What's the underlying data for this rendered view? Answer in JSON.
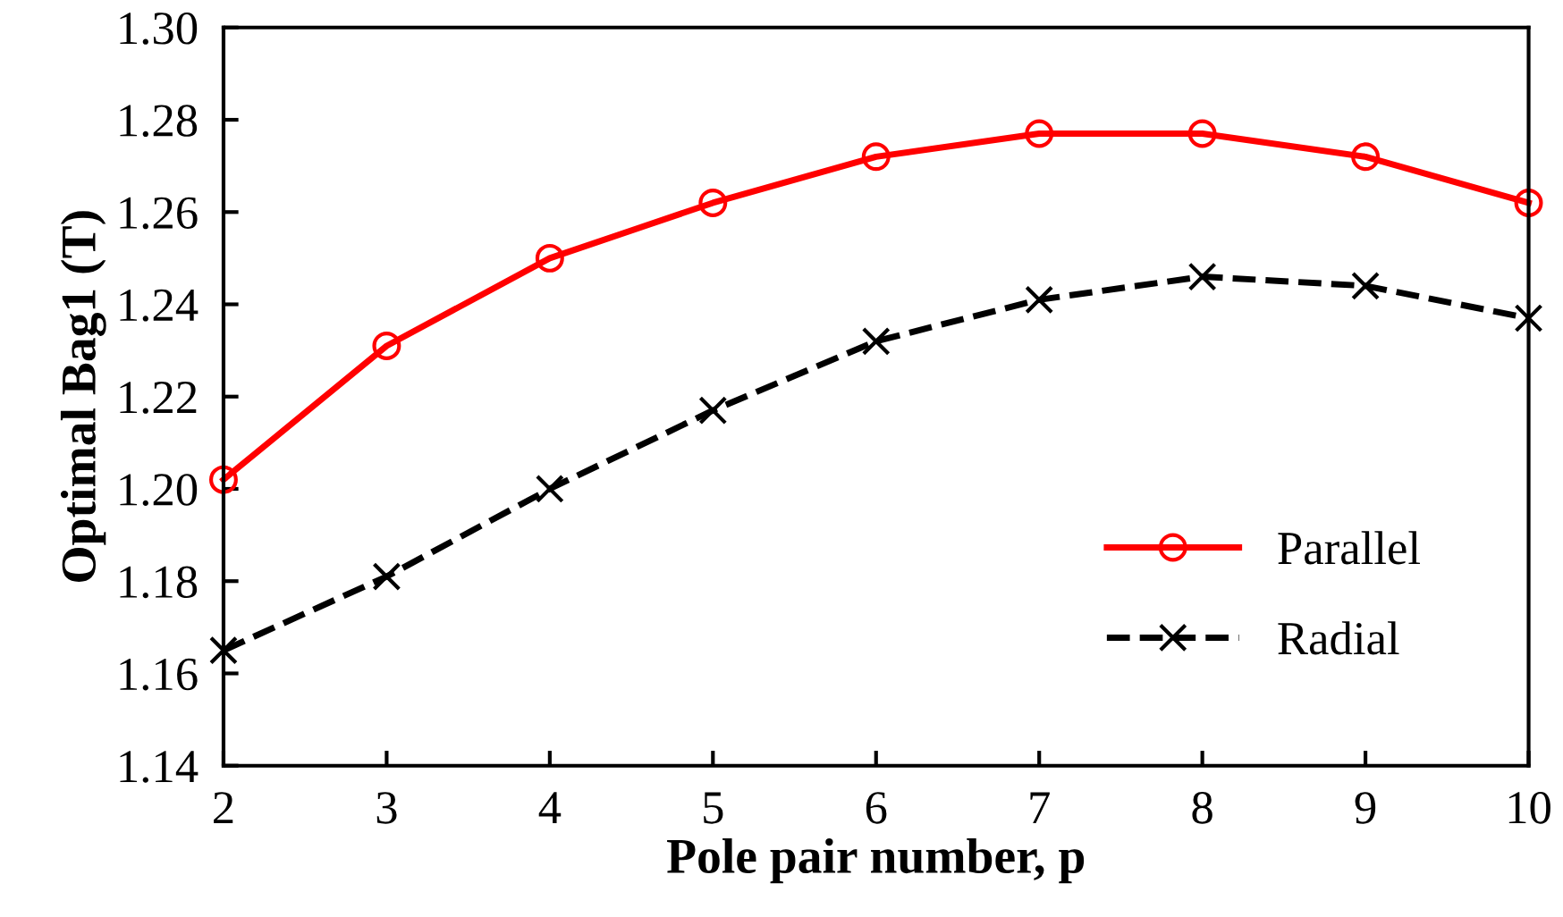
{
  "chart_data": {
    "type": "line",
    "xlabel": "Pole pair number, p",
    "ylabel": "Optimal Bag1 (T)",
    "x": [
      2,
      3,
      4,
      5,
      6,
      7,
      8,
      9,
      10
    ],
    "series": [
      {
        "name": "Parallel",
        "color": "#ff0000",
        "marker": "circle",
        "line_style": "solid",
        "values": [
          1.202,
          1.231,
          1.25,
          1.262,
          1.272,
          1.277,
          1.277,
          1.272,
          1.262
        ]
      },
      {
        "name": "Radial",
        "color": "#000000",
        "marker": "cross",
        "line_style": "dashed",
        "values": [
          1.165,
          1.181,
          1.2,
          1.217,
          1.232,
          1.241,
          1.246,
          1.244,
          1.237
        ]
      }
    ],
    "xlim": [
      2,
      10
    ],
    "xticks": [
      2,
      3,
      4,
      5,
      6,
      7,
      8,
      9,
      10
    ],
    "ylim": [
      1.14,
      1.3
    ],
    "yticks": [
      {
        "value": 1.14,
        "label": "1.14"
      },
      {
        "value": 1.16,
        "label": "1.16"
      },
      {
        "value": 1.18,
        "label": "1.18"
      },
      {
        "value": 1.2,
        "label": "1.20"
      },
      {
        "value": 1.22,
        "label": "1.22"
      },
      {
        "value": 1.24,
        "label": "1.24"
      },
      {
        "value": 1.26,
        "label": "1.26"
      },
      {
        "value": 1.28,
        "label": "1.28"
      },
      {
        "value": 1.3,
        "label": "1.30"
      }
    ],
    "grid": false,
    "legend": "bottom right"
  }
}
